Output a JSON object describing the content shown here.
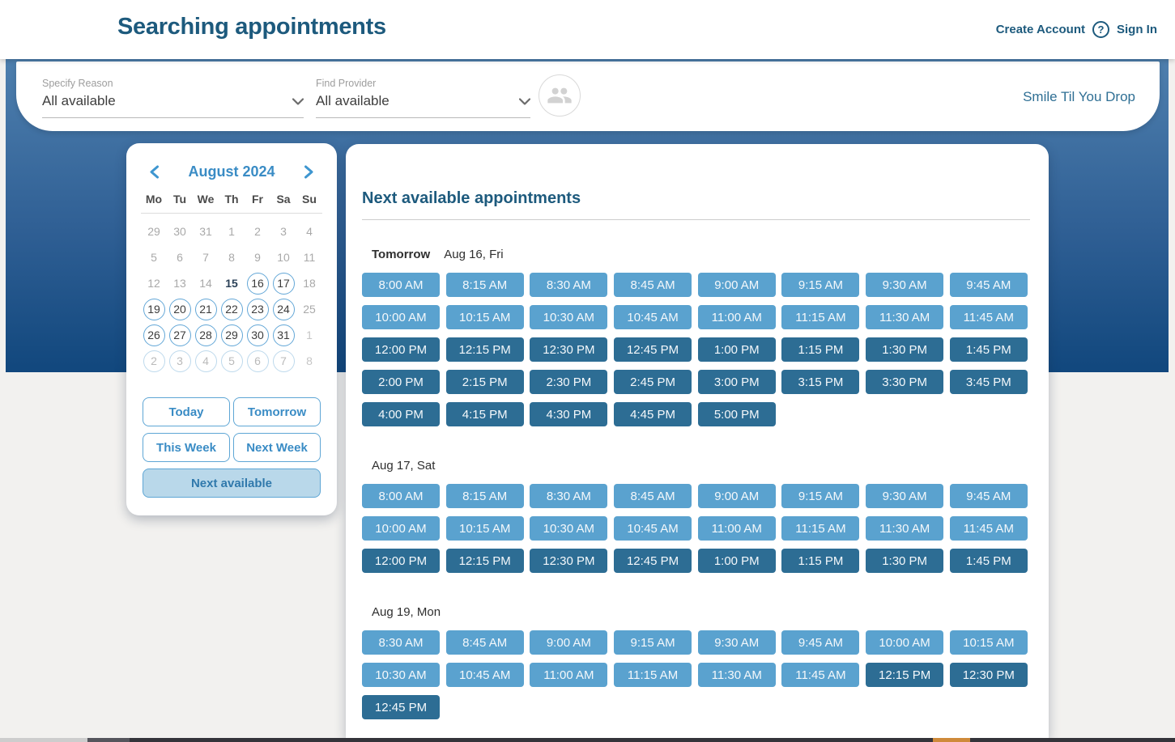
{
  "header": {
    "title": "Searching appointments",
    "create_account": "Create Account",
    "help": "?",
    "sign_in": "Sign In"
  },
  "filters": {
    "reason": {
      "label": "Specify Reason",
      "value": "All available"
    },
    "provider": {
      "label": "Find Provider",
      "value": "All available"
    },
    "practice_name": "Smile Til You Drop"
  },
  "calendar": {
    "title": "August 2024",
    "weekdays": [
      "Mo",
      "Tu",
      "We",
      "Th",
      "Fr",
      "Sa",
      "Su"
    ],
    "weeks": [
      [
        {
          "d": "29",
          "s": "muted"
        },
        {
          "d": "30",
          "s": "muted"
        },
        {
          "d": "31",
          "s": "muted"
        },
        {
          "d": "1",
          "s": "muted"
        },
        {
          "d": "2",
          "s": "muted"
        },
        {
          "d": "3",
          "s": "muted"
        },
        {
          "d": "4",
          "s": "muted"
        }
      ],
      [
        {
          "d": "5",
          "s": "muted"
        },
        {
          "d": "6",
          "s": "muted"
        },
        {
          "d": "7",
          "s": "muted"
        },
        {
          "d": "8",
          "s": "muted"
        },
        {
          "d": "9",
          "s": "muted"
        },
        {
          "d": "10",
          "s": "muted"
        },
        {
          "d": "11",
          "s": "muted"
        }
      ],
      [
        {
          "d": "12",
          "s": "muted"
        },
        {
          "d": "13",
          "s": "muted"
        },
        {
          "d": "14",
          "s": "muted"
        },
        {
          "d": "15",
          "s": "today"
        },
        {
          "d": "16",
          "s": "circled"
        },
        {
          "d": "17",
          "s": "circled"
        },
        {
          "d": "18",
          "s": "muted"
        }
      ],
      [
        {
          "d": "19",
          "s": "circled"
        },
        {
          "d": "20",
          "s": "circled"
        },
        {
          "d": "21",
          "s": "circled"
        },
        {
          "d": "22",
          "s": "circled"
        },
        {
          "d": "23",
          "s": "circled"
        },
        {
          "d": "24",
          "s": "circled"
        },
        {
          "d": "25",
          "s": "muted"
        }
      ],
      [
        {
          "d": "26",
          "s": "circled"
        },
        {
          "d": "27",
          "s": "circled"
        },
        {
          "d": "28",
          "s": "circled"
        },
        {
          "d": "29",
          "s": "circled"
        },
        {
          "d": "30",
          "s": "circled"
        },
        {
          "d": "31",
          "s": "circled"
        },
        {
          "d": "1",
          "s": "muted-light"
        }
      ],
      [
        {
          "d": "2",
          "s": "circled-faded"
        },
        {
          "d": "3",
          "s": "circled-faded"
        },
        {
          "d": "4",
          "s": "circled-faded"
        },
        {
          "d": "5",
          "s": "circled-faded"
        },
        {
          "d": "6",
          "s": "circled-faded"
        },
        {
          "d": "7",
          "s": "circled-faded"
        },
        {
          "d": "8",
          "s": "muted-light"
        }
      ]
    ],
    "quick_buttons": [
      "Today",
      "Tomorrow",
      "This Week",
      "Next Week"
    ],
    "next_available_label": "Next available"
  },
  "appointments": {
    "heading": "Next available appointments",
    "days": [
      {
        "tag": "Tomorrow",
        "date": "Aug 16, Fri",
        "times": [
          "8:00 AM",
          "8:15 AM",
          "8:30 AM",
          "8:45 AM",
          "9:00 AM",
          "9:15 AM",
          "9:30 AM",
          "9:45 AM",
          "10:00 AM",
          "10:15 AM",
          "10:30 AM",
          "10:45 AM",
          "11:00 AM",
          "11:15 AM",
          "11:30 AM",
          "11:45 AM",
          "12:00 PM",
          "12:15 PM",
          "12:30 PM",
          "12:45 PM",
          "1:00 PM",
          "1:15 PM",
          "1:30 PM",
          "1:45 PM",
          "2:00 PM",
          "2:15 PM",
          "2:30 PM",
          "2:45 PM",
          "3:00 PM",
          "3:15 PM",
          "3:30 PM",
          "3:45 PM",
          "4:00 PM",
          "4:15 PM",
          "4:30 PM",
          "4:45 PM",
          "5:00 PM"
        ]
      },
      {
        "tag": "",
        "date": "Aug 17, Sat",
        "times": [
          "8:00 AM",
          "8:15 AM",
          "8:30 AM",
          "8:45 AM",
          "9:00 AM",
          "9:15 AM",
          "9:30 AM",
          "9:45 AM",
          "10:00 AM",
          "10:15 AM",
          "10:30 AM",
          "10:45 AM",
          "11:00 AM",
          "11:15 AM",
          "11:30 AM",
          "11:45 AM",
          "12:00 PM",
          "12:15 PM",
          "12:30 PM",
          "12:45 PM",
          "1:00 PM",
          "1:15 PM",
          "1:30 PM",
          "1:45 PM"
        ]
      },
      {
        "tag": "",
        "date": "Aug 19, Mon",
        "times": [
          "8:30 AM",
          "8:45 AM",
          "9:00 AM",
          "9:15 AM",
          "9:30 AM",
          "9:45 AM",
          "10:00 AM",
          "10:15 AM",
          "10:30 AM",
          "10:45 AM",
          "11:00 AM",
          "11:15 AM",
          "11:30 AM",
          "11:45 AM",
          "12:15 PM",
          "12:30 PM",
          "12:45 PM"
        ]
      }
    ]
  },
  "colors": {
    "brand_dark": "#1d5a7d",
    "calendar_accent": "#3a8cc5",
    "circle_border": "#63a7d7",
    "am_slot": "#5aa2cf",
    "pm_slot": "#2d6d94",
    "selected_quick_bg": "#b9d8ea",
    "practice_text": "#2f6f94",
    "taskbar_orange": "#cf8a3a"
  }
}
